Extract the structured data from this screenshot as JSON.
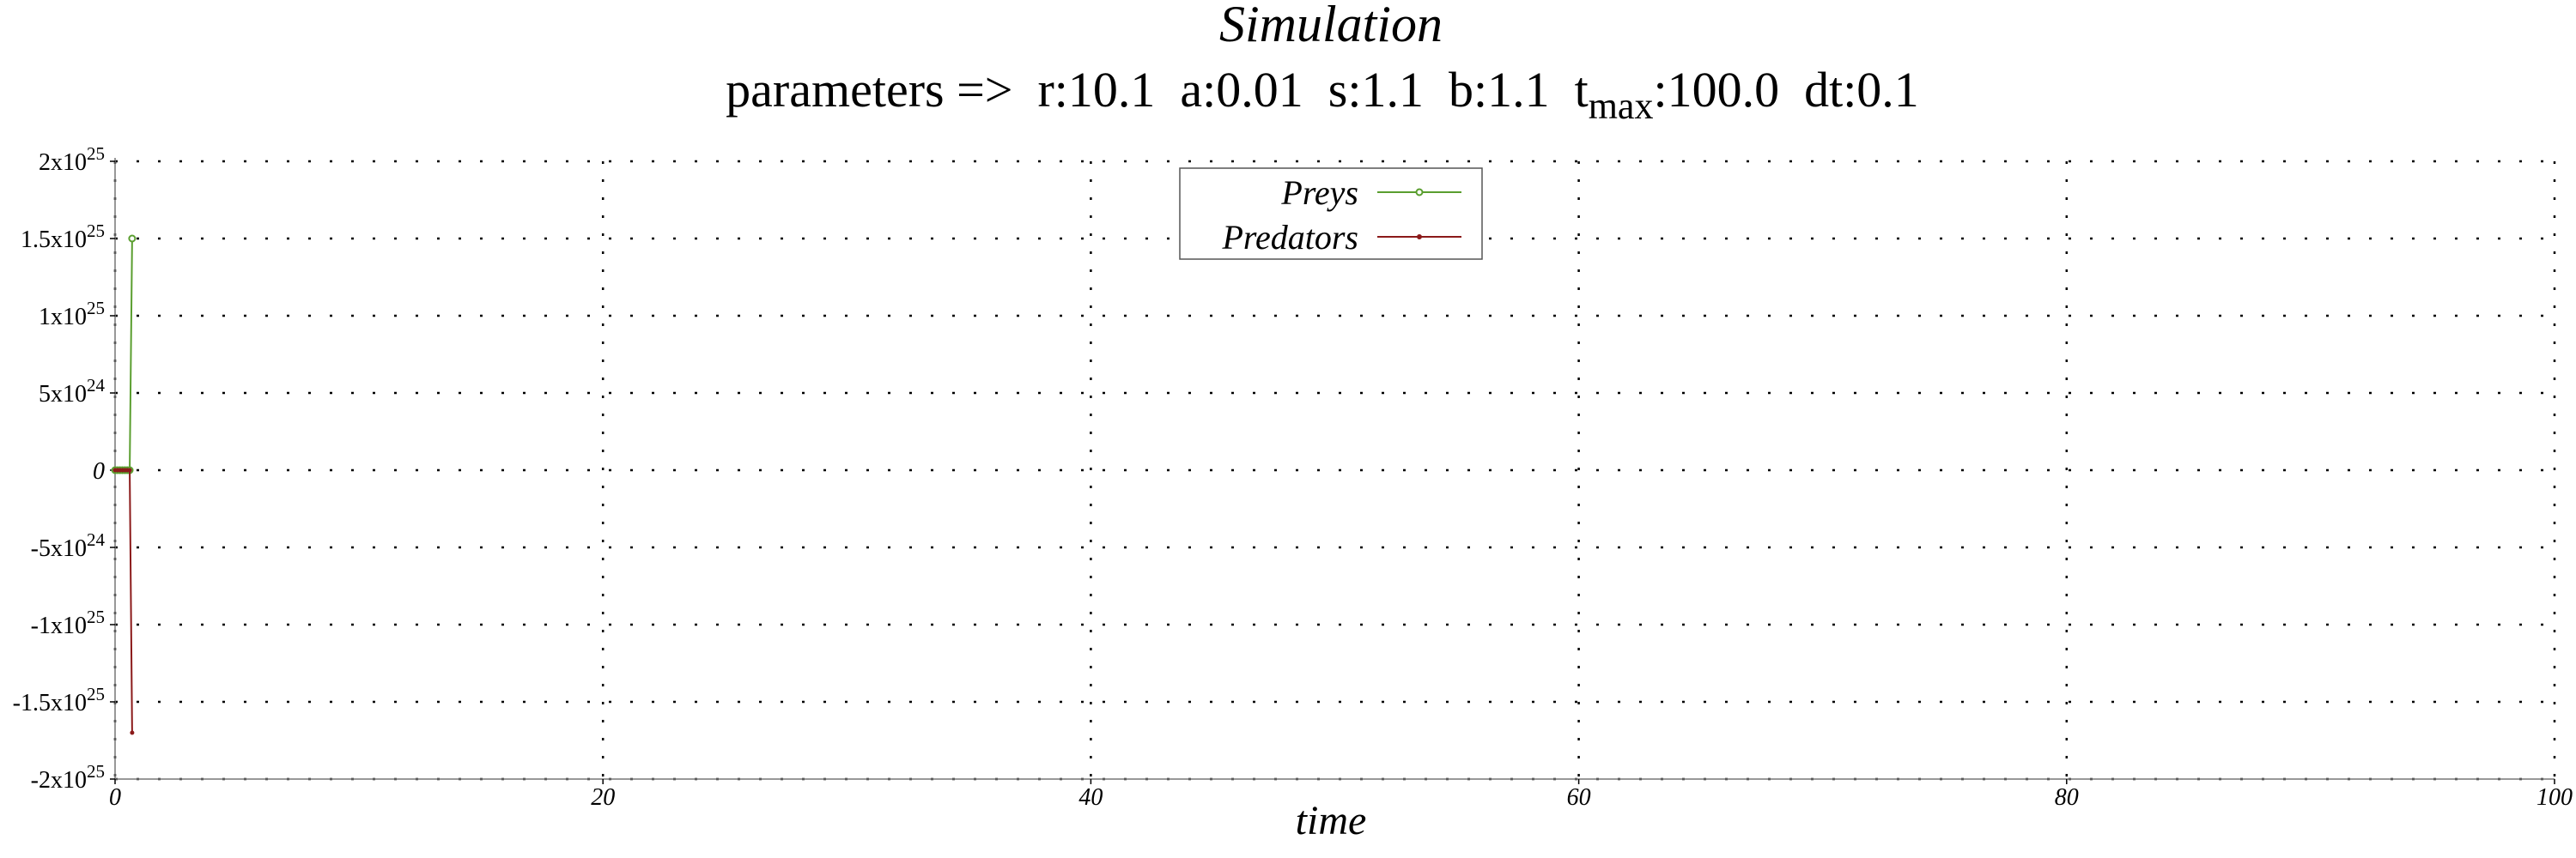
{
  "chart_data": {
    "type": "line",
    "title": "Simulation",
    "subtitle": {
      "prefix": "parameters =>  r:10.1  a:0.01  s:1.1  b:1.1  t",
      "sub": "max",
      "suffix": ":100.0  dt:0.1"
    },
    "xlabel": "time",
    "ylabel": "",
    "xlim": [
      0,
      100
    ],
    "ylim": [
      -2e+25,
      2e+25
    ],
    "x_ticks": [
      {
        "value": 0,
        "label": "0"
      },
      {
        "value": 20,
        "label": "20"
      },
      {
        "value": 40,
        "label": "40"
      },
      {
        "value": 60,
        "label": "60"
      },
      {
        "value": 80,
        "label": "80"
      },
      {
        "value": 100,
        "label": "100"
      }
    ],
    "y_ticks": [
      {
        "value": 2e+25,
        "mant": "2x10",
        "exp": "25"
      },
      {
        "value": 1.5e+25,
        "mant": "1.5x10",
        "exp": "25"
      },
      {
        "value": 1e+25,
        "mant": "1x10",
        "exp": "25"
      },
      {
        "value": 5e+24,
        "mant": "5x10",
        "exp": "24"
      },
      {
        "value": 0,
        "mant": "0",
        "exp": ""
      },
      {
        "value": -5e+24,
        "mant": "-5x10",
        "exp": "24"
      },
      {
        "value": -1e+25,
        "mant": "-1x10",
        "exp": "25"
      },
      {
        "value": -1.5e+25,
        "mant": "-1.5x10",
        "exp": "25"
      },
      {
        "value": -2e+25,
        "mant": "-2x10",
        "exp": "25"
      }
    ],
    "grid": true,
    "legend_position": "top-center",
    "series": [
      {
        "name": "Preys",
        "color": "#5a9e2f",
        "marker": "circle",
        "x": [
          0,
          0.1,
          0.2,
          0.3,
          0.4,
          0.5,
          0.6,
          0.7
        ],
        "y": [
          0,
          0,
          0,
          0,
          0,
          0,
          0,
          1.5e+25
        ]
      },
      {
        "name": "Predators",
        "color": "#8b1a1a",
        "marker": "dot",
        "x": [
          0,
          0.1,
          0.2,
          0.3,
          0.4,
          0.5,
          0.6,
          0.7
        ],
        "y": [
          0,
          0,
          0,
          0,
          0,
          0,
          0,
          -1.7e+25
        ]
      }
    ]
  }
}
